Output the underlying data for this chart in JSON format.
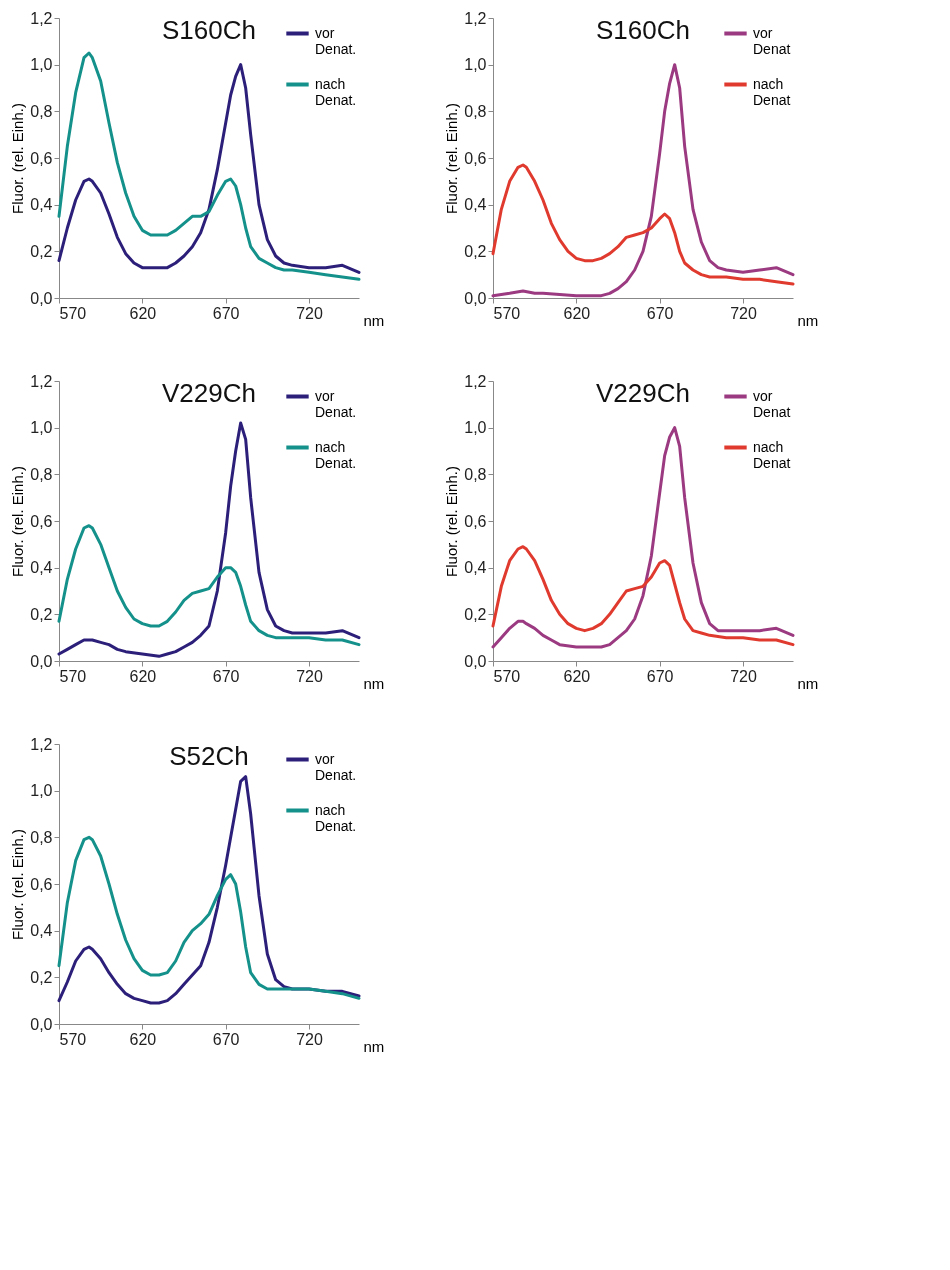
{
  "chart_data": [
    {
      "type": "line",
      "title": "S160Ch",
      "xlabel": "nm",
      "ylabel": "Fluor. (rel. Einh.)",
      "xlim": [
        570,
        750
      ],
      "xticks": [
        570,
        620,
        670,
        720
      ],
      "ylim": [
        0,
        1.2
      ],
      "yticks": [
        {
          "value": 0,
          "label": "0,0"
        },
        {
          "value": 0.2,
          "label": "0,2"
        },
        {
          "value": 0.4,
          "label": "0,4"
        },
        {
          "value": 0.6,
          "label": "0,6"
        },
        {
          "value": 0.8,
          "label": "0,8"
        },
        {
          "value": 1.0,
          "label": "1,0"
        },
        {
          "value": 1.2,
          "label": "1,2"
        }
      ],
      "grid": false,
      "legend": "top right",
      "marker": "none",
      "line_style": "solid",
      "series": [
        {
          "name": "vor Denat.",
          "color": "#2b1f7a",
          "x": [
            570,
            575,
            580,
            585,
            588,
            590,
            595,
            600,
            605,
            610,
            615,
            620,
            625,
            630,
            635,
            640,
            645,
            650,
            655,
            660,
            665,
            670,
            673,
            676,
            679,
            682,
            685,
            690,
            695,
            700,
            705,
            710,
            720,
            730,
            740,
            750
          ],
          "values": [
            0.16,
            0.3,
            0.42,
            0.5,
            0.51,
            0.5,
            0.45,
            0.36,
            0.26,
            0.19,
            0.15,
            0.13,
            0.13,
            0.13,
            0.13,
            0.15,
            0.18,
            0.22,
            0.28,
            0.38,
            0.55,
            0.75,
            0.87,
            0.95,
            1.0,
            0.9,
            0.7,
            0.4,
            0.25,
            0.18,
            0.15,
            0.14,
            0.13,
            0.13,
            0.14,
            0.11
          ]
        },
        {
          "name": "nach Denat.",
          "color": "#14918a",
          "x": [
            570,
            575,
            580,
            585,
            588,
            590,
            595,
            600,
            605,
            610,
            615,
            620,
            625,
            630,
            635,
            640,
            645,
            650,
            655,
            660,
            665,
            670,
            673,
            676,
            679,
            682,
            685,
            690,
            695,
            700,
            705,
            710,
            720,
            730,
            740,
            750
          ],
          "values": [
            0.35,
            0.65,
            0.88,
            1.03,
            1.05,
            1.03,
            0.93,
            0.75,
            0.58,
            0.45,
            0.35,
            0.29,
            0.27,
            0.27,
            0.27,
            0.29,
            0.32,
            0.35,
            0.35,
            0.37,
            0.44,
            0.5,
            0.51,
            0.48,
            0.4,
            0.3,
            0.22,
            0.17,
            0.15,
            0.13,
            0.12,
            0.12,
            0.11,
            0.1,
            0.09,
            0.08
          ]
        }
      ]
    },
    {
      "type": "line",
      "title": "S160Ch",
      "xlabel": "nm",
      "ylabel": "Fluor. (rel. Einh.)",
      "xlim": [
        570,
        750
      ],
      "xticks": [
        570,
        620,
        670,
        720
      ],
      "ylim": [
        0,
        1.2
      ],
      "yticks": [
        {
          "value": 0,
          "label": "0,0"
        },
        {
          "value": 0.2,
          "label": "0,2"
        },
        {
          "value": 0.4,
          "label": "0,4"
        },
        {
          "value": 0.6,
          "label": "0,6"
        },
        {
          "value": 0.8,
          "label": "0,8"
        },
        {
          "value": 1.0,
          "label": "1,0"
        },
        {
          "value": 1.2,
          "label": "1,2"
        }
      ],
      "grid": false,
      "legend": "top right",
      "marker": "none",
      "line_style": "solid",
      "series": [
        {
          "name": "vor Denat",
          "color": "#9b3a80",
          "x": [
            570,
            580,
            588,
            595,
            600,
            610,
            620,
            630,
            635,
            640,
            645,
            650,
            655,
            660,
            665,
            670,
            673,
            676,
            679,
            682,
            685,
            690,
            695,
            700,
            705,
            710,
            720,
            730,
            740,
            750
          ],
          "values": [
            0.01,
            0.02,
            0.03,
            0.02,
            0.02,
            0.015,
            0.01,
            0.01,
            0.01,
            0.02,
            0.04,
            0.07,
            0.12,
            0.2,
            0.35,
            0.62,
            0.8,
            0.92,
            1.0,
            0.9,
            0.65,
            0.38,
            0.24,
            0.16,
            0.13,
            0.12,
            0.11,
            0.12,
            0.13,
            0.1
          ]
        },
        {
          "name": "nach Denat",
          "color": "#e03a2e",
          "x": [
            570,
            575,
            580,
            585,
            588,
            590,
            595,
            600,
            605,
            610,
            615,
            620,
            625,
            630,
            635,
            640,
            645,
            650,
            655,
            660,
            665,
            670,
            673,
            676,
            679,
            682,
            685,
            690,
            695,
            700,
            710,
            720,
            730,
            740,
            750
          ],
          "values": [
            0.19,
            0.38,
            0.5,
            0.56,
            0.57,
            0.56,
            0.5,
            0.42,
            0.32,
            0.25,
            0.2,
            0.17,
            0.16,
            0.16,
            0.17,
            0.19,
            0.22,
            0.26,
            0.27,
            0.28,
            0.3,
            0.34,
            0.36,
            0.34,
            0.28,
            0.2,
            0.15,
            0.12,
            0.1,
            0.09,
            0.09,
            0.08,
            0.08,
            0.07,
            0.06
          ]
        }
      ]
    },
    {
      "type": "line",
      "title": "V229Ch",
      "xlabel": "nm",
      "ylabel": "Fluor. (rel. Einh.)",
      "xlim": [
        570,
        750
      ],
      "xticks": [
        570,
        620,
        670,
        720
      ],
      "ylim": [
        0,
        1.2
      ],
      "yticks": [
        {
          "value": 0,
          "label": "0,0"
        },
        {
          "value": 0.2,
          "label": "0,2"
        },
        {
          "value": 0.4,
          "label": "0,4"
        },
        {
          "value": 0.6,
          "label": "0,6"
        },
        {
          "value": 0.8,
          "label": "0,8"
        },
        {
          "value": 1.0,
          "label": "1,0"
        },
        {
          "value": 1.2,
          "label": "1,2"
        }
      ],
      "grid": false,
      "legend": "top right",
      "marker": "none",
      "line_style": "solid",
      "series": [
        {
          "name": "vor Denat.",
          "color": "#2b1f7a",
          "x": [
            570,
            575,
            580,
            585,
            590,
            595,
            600,
            605,
            610,
            620,
            630,
            635,
            640,
            645,
            650,
            655,
            660,
            665,
            670,
            673,
            676,
            679,
            682,
            685,
            690,
            695,
            700,
            705,
            710,
            720,
            730,
            740,
            750
          ],
          "values": [
            0.03,
            0.05,
            0.07,
            0.09,
            0.09,
            0.08,
            0.07,
            0.05,
            0.04,
            0.03,
            0.02,
            0.03,
            0.04,
            0.06,
            0.08,
            0.11,
            0.15,
            0.3,
            0.55,
            0.75,
            0.9,
            1.02,
            0.95,
            0.7,
            0.38,
            0.22,
            0.15,
            0.13,
            0.12,
            0.12,
            0.12,
            0.13,
            0.1
          ]
        },
        {
          "name": "nach Denat.",
          "color": "#14918a",
          "x": [
            570,
            575,
            580,
            585,
            588,
            590,
            595,
            600,
            605,
            610,
            615,
            620,
            625,
            630,
            635,
            640,
            645,
            650,
            655,
            660,
            665,
            670,
            673,
            676,
            679,
            682,
            685,
            690,
            695,
            700,
            710,
            720,
            730,
            740,
            750
          ],
          "values": [
            0.17,
            0.35,
            0.48,
            0.57,
            0.58,
            0.57,
            0.5,
            0.4,
            0.3,
            0.23,
            0.18,
            0.16,
            0.15,
            0.15,
            0.17,
            0.21,
            0.26,
            0.29,
            0.3,
            0.31,
            0.36,
            0.4,
            0.4,
            0.38,
            0.32,
            0.24,
            0.17,
            0.13,
            0.11,
            0.1,
            0.1,
            0.1,
            0.09,
            0.09,
            0.07
          ]
        }
      ]
    },
    {
      "type": "line",
      "title": "V229Ch",
      "xlabel": "nm",
      "ylabel": "Fluor. (rel. Einh.)",
      "xlim": [
        570,
        750
      ],
      "xticks": [
        570,
        620,
        670,
        720
      ],
      "ylim": [
        0,
        1.2
      ],
      "yticks": [
        {
          "value": 0,
          "label": "0,0"
        },
        {
          "value": 0.2,
          "label": "0,2"
        },
        {
          "value": 0.4,
          "label": "0,4"
        },
        {
          "value": 0.6,
          "label": "0,6"
        },
        {
          "value": 0.8,
          "label": "0,8"
        },
        {
          "value": 1.0,
          "label": "1,0"
        },
        {
          "value": 1.2,
          "label": "1,2"
        }
      ],
      "grid": false,
      "legend": "top right",
      "marker": "none",
      "line_style": "solid",
      "series": [
        {
          "name": "vor Denat",
          "color": "#9b3a80",
          "x": [
            570,
            575,
            580,
            585,
            588,
            590,
            595,
            600,
            605,
            610,
            620,
            630,
            635,
            640,
            645,
            650,
            655,
            660,
            665,
            670,
            673,
            676,
            679,
            682,
            685,
            690,
            695,
            700,
            705,
            710,
            720,
            730,
            740,
            750
          ],
          "values": [
            0.06,
            0.1,
            0.14,
            0.17,
            0.17,
            0.16,
            0.14,
            0.11,
            0.09,
            0.07,
            0.06,
            0.06,
            0.06,
            0.07,
            0.1,
            0.13,
            0.18,
            0.28,
            0.45,
            0.72,
            0.88,
            0.96,
            1.0,
            0.92,
            0.7,
            0.42,
            0.25,
            0.16,
            0.13,
            0.13,
            0.13,
            0.13,
            0.14,
            0.11
          ]
        },
        {
          "name": "nach Denat",
          "color": "#e03a2e",
          "x": [
            570,
            575,
            580,
            585,
            588,
            590,
            595,
            600,
            605,
            610,
            615,
            620,
            625,
            630,
            635,
            640,
            645,
            650,
            655,
            660,
            665,
            670,
            673,
            676,
            679,
            682,
            685,
            690,
            695,
            700,
            710,
            720,
            730,
            740,
            750
          ],
          "values": [
            0.15,
            0.32,
            0.43,
            0.48,
            0.49,
            0.48,
            0.43,
            0.35,
            0.26,
            0.2,
            0.16,
            0.14,
            0.13,
            0.14,
            0.16,
            0.2,
            0.25,
            0.3,
            0.31,
            0.32,
            0.36,
            0.42,
            0.43,
            0.41,
            0.33,
            0.25,
            0.18,
            0.13,
            0.12,
            0.11,
            0.1,
            0.1,
            0.09,
            0.09,
            0.07
          ]
        }
      ]
    },
    {
      "type": "line",
      "title": "S52Ch",
      "xlabel": "nm",
      "ylabel": "Fluor. (rel. Einh.)",
      "xlim": [
        570,
        750
      ],
      "xticks": [
        570,
        620,
        670,
        720
      ],
      "ylim": [
        0,
        1.2
      ],
      "yticks": [
        {
          "value": 0,
          "label": "0,0"
        },
        {
          "value": 0.2,
          "label": "0,2"
        },
        {
          "value": 0.4,
          "label": "0,4"
        },
        {
          "value": 0.6,
          "label": "0,6"
        },
        {
          "value": 0.8,
          "label": "0,8"
        },
        {
          "value": 1.0,
          "label": "1,0"
        },
        {
          "value": 1.2,
          "label": "1,2"
        }
      ],
      "grid": false,
      "legend": "top right",
      "marker": "none",
      "line_style": "solid",
      "series": [
        {
          "name": "vor Denat.",
          "color": "#2b1f7a",
          "x": [
            570,
            575,
            580,
            585,
            588,
            590,
            595,
            600,
            605,
            610,
            615,
            620,
            625,
            630,
            635,
            640,
            645,
            650,
            655,
            660,
            665,
            670,
            673,
            676,
            679,
            682,
            685,
            690,
            695,
            700,
            705,
            710,
            720,
            730,
            740,
            750
          ],
          "values": [
            0.1,
            0.18,
            0.27,
            0.32,
            0.33,
            0.32,
            0.28,
            0.22,
            0.17,
            0.13,
            0.11,
            0.1,
            0.09,
            0.09,
            0.1,
            0.13,
            0.17,
            0.21,
            0.25,
            0.35,
            0.5,
            0.68,
            0.8,
            0.92,
            1.04,
            1.06,
            0.9,
            0.55,
            0.3,
            0.19,
            0.16,
            0.15,
            0.15,
            0.14,
            0.14,
            0.12
          ]
        },
        {
          "name": "nach Denat.",
          "color": "#14918a",
          "x": [
            570,
            575,
            580,
            585,
            588,
            590,
            595,
            600,
            605,
            610,
            615,
            620,
            625,
            630,
            635,
            640,
            645,
            650,
            655,
            660,
            665,
            670,
            673,
            676,
            679,
            682,
            685,
            690,
            695,
            700,
            710,
            720,
            730,
            740,
            750
          ],
          "values": [
            0.25,
            0.52,
            0.7,
            0.79,
            0.8,
            0.79,
            0.72,
            0.6,
            0.47,
            0.36,
            0.28,
            0.23,
            0.21,
            0.21,
            0.22,
            0.27,
            0.35,
            0.4,
            0.43,
            0.47,
            0.55,
            0.62,
            0.64,
            0.6,
            0.48,
            0.33,
            0.22,
            0.17,
            0.15,
            0.15,
            0.15,
            0.15,
            0.14,
            0.13,
            0.11
          ]
        }
      ]
    }
  ]
}
